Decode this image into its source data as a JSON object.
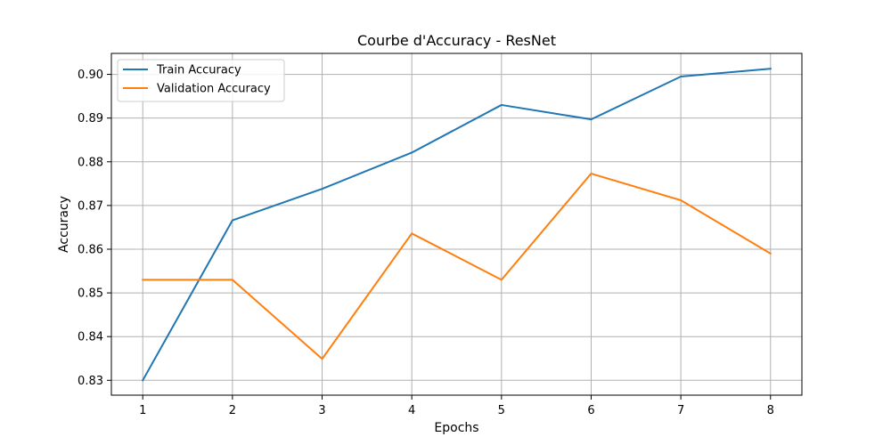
{
  "chart_data": {
    "type": "line",
    "title": "Courbe d'Accuracy - ResNet",
    "xlabel": "Epochs",
    "ylabel": "Accuracy",
    "x": [
      1,
      2,
      3,
      4,
      5,
      6,
      7,
      8
    ],
    "xlim": [
      0.65,
      8.35
    ],
    "ylim": [
      0.8266,
      0.9048
    ],
    "xticks": [
      1,
      2,
      3,
      4,
      5,
      6,
      7,
      8
    ],
    "yticks": [
      0.83,
      0.84,
      0.85,
      0.86,
      0.87,
      0.88,
      0.89,
      0.9
    ],
    "ytick_labels": [
      "0.83",
      "0.84",
      "0.85",
      "0.86",
      "0.87",
      "0.88",
      "0.89",
      "0.90"
    ],
    "grid": true,
    "legend_position": "top-left",
    "series": [
      {
        "name": "Train Accuracy",
        "color": "#1f77b4",
        "values": [
          0.83,
          0.8666,
          0.8738,
          0.8821,
          0.893,
          0.8897,
          0.8995,
          0.9013
        ]
      },
      {
        "name": "Validation Accuracy",
        "color": "#ff7f0e",
        "values": [
          0.853,
          0.853,
          0.8349,
          0.8636,
          0.853,
          0.8773,
          0.8712,
          0.859
        ]
      }
    ]
  }
}
